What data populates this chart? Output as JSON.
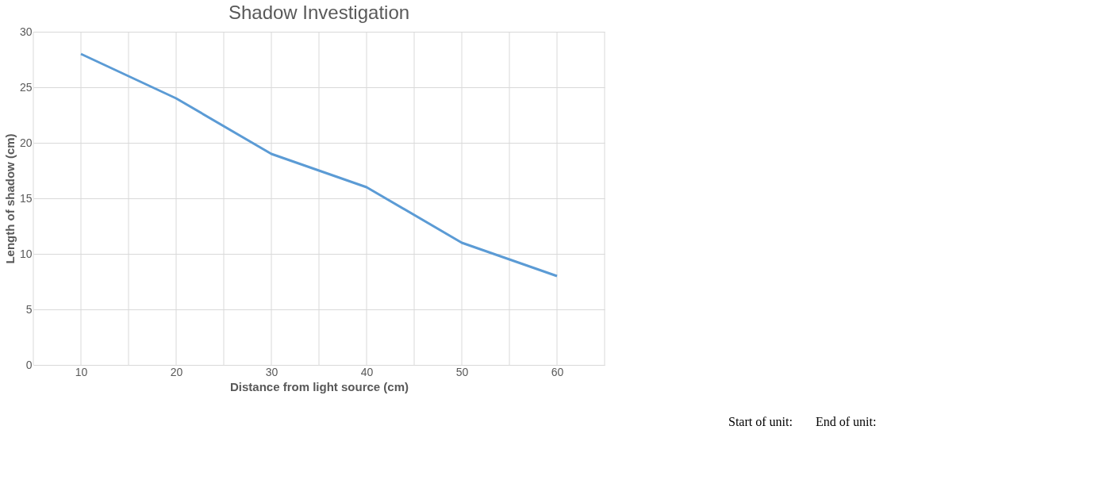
{
  "chart_data": {
    "type": "line",
    "title": "Shadow Investigation",
    "xlabel": "Distance from light source (cm)",
    "ylabel": "Length of shadow (cm)",
    "categories": [
      "10",
      "20",
      "30",
      "40",
      "50",
      "60"
    ],
    "series": [
      {
        "color": "#5b9bd5",
        "values": [
          28,
          24,
          19,
          16,
          11,
          8
        ]
      }
    ],
    "ylim": [
      0,
      30
    ],
    "yticks": [
      0,
      5,
      10,
      15,
      20,
      25,
      30
    ],
    "grid": true,
    "marker": "none",
    "line_style": "solid",
    "annotations": [
      "Start of unit:",
      "End of unit:"
    ]
  }
}
